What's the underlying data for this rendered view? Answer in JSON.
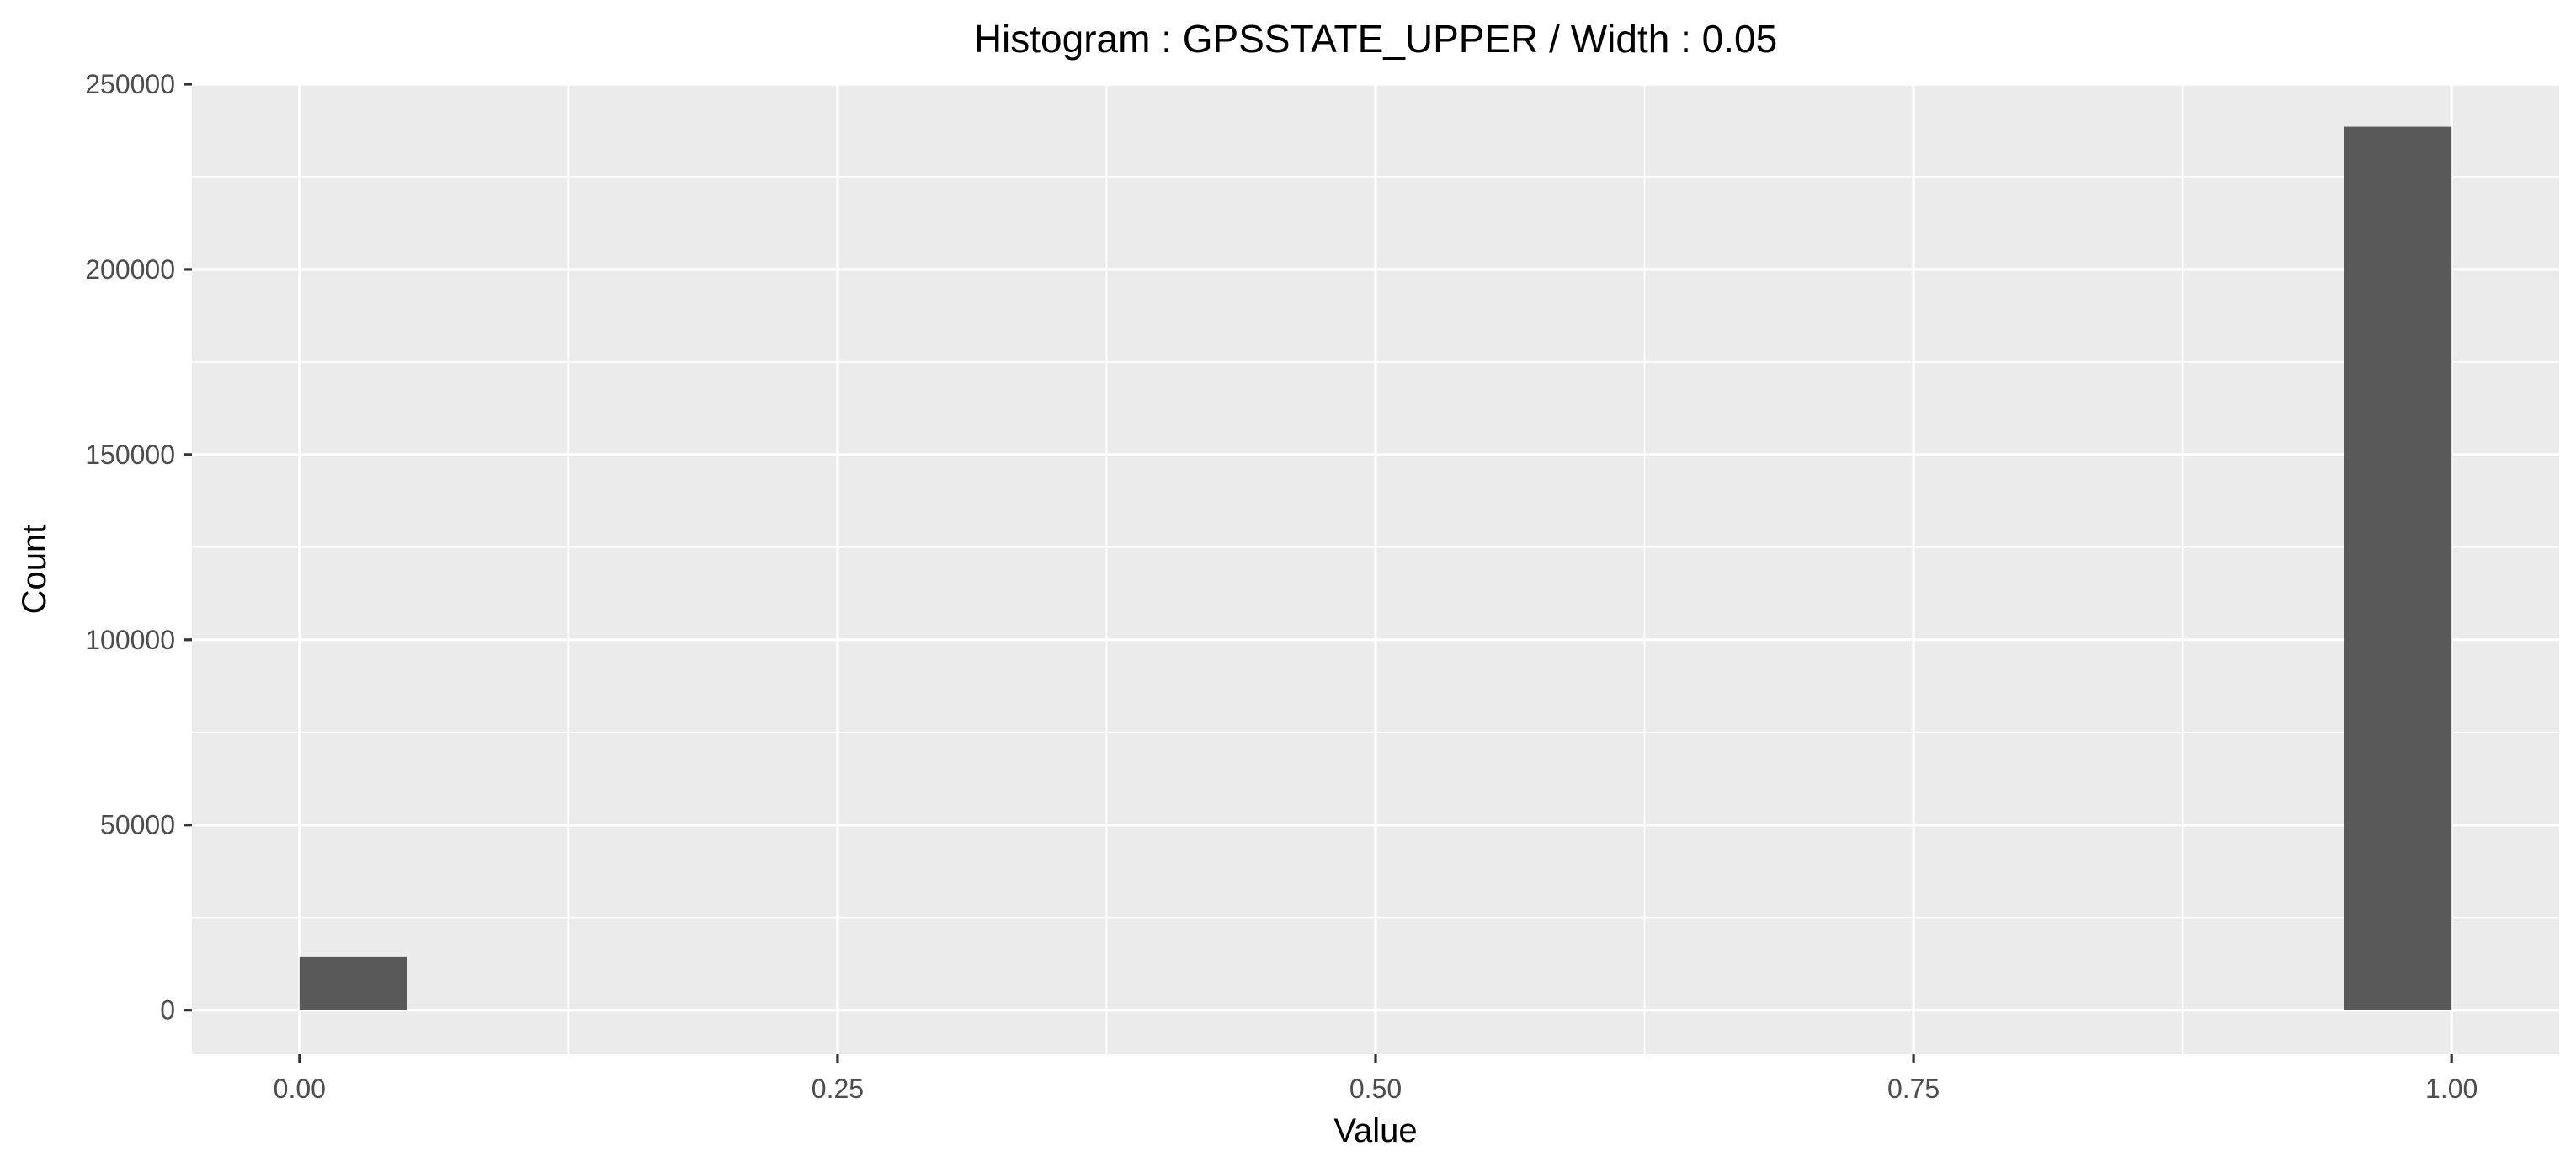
{
  "chart_data": {
    "type": "bar",
    "title": "Histogram : GPSSTATE_UPPER / Width : 0.05",
    "xlabel": "Value",
    "ylabel": "Count",
    "bin_width": 0.05,
    "bins": [
      {
        "x_start": 0.0,
        "x_end": 0.05,
        "count": 14500
      },
      {
        "x_start": 0.95,
        "x_end": 1.0,
        "count": 238500
      }
    ],
    "xlim": [
      -0.05,
      1.05
    ],
    "ylim": [
      -11900,
      250000
    ],
    "x_ticks": [
      {
        "value": 0.0,
        "label": "0.00"
      },
      {
        "value": 0.25,
        "label": "0.25"
      },
      {
        "value": 0.5,
        "label": "0.50"
      },
      {
        "value": 0.75,
        "label": "0.75"
      },
      {
        "value": 1.0,
        "label": "1.00"
      }
    ],
    "y_ticks": [
      {
        "value": 0,
        "label": "0"
      },
      {
        "value": 50000,
        "label": "50000"
      },
      {
        "value": 100000,
        "label": "100000"
      },
      {
        "value": 150000,
        "label": "150000"
      },
      {
        "value": 200000,
        "label": "200000"
      },
      {
        "value": 250000,
        "label": "250000"
      }
    ],
    "grid": true,
    "colors": {
      "panel_background": "#ebebeb",
      "bar_fill": "#595959",
      "gridline": "#ffffff"
    }
  }
}
